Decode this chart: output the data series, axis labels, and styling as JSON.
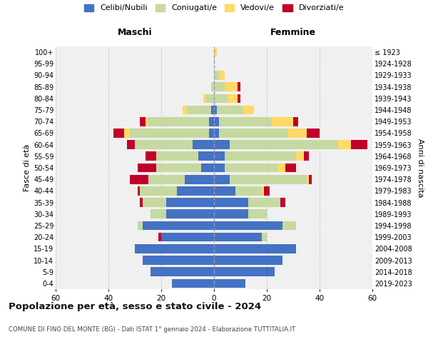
{
  "age_groups": [
    "0-4",
    "5-9",
    "10-14",
    "15-19",
    "20-24",
    "25-29",
    "30-34",
    "35-39",
    "40-44",
    "45-49",
    "50-54",
    "55-59",
    "60-64",
    "65-69",
    "70-74",
    "75-79",
    "80-84",
    "85-89",
    "90-94",
    "95-99",
    "100+"
  ],
  "birth_years": [
    "2019-2023",
    "2014-2018",
    "2009-2013",
    "2004-2008",
    "1999-2003",
    "1994-1998",
    "1989-1993",
    "1984-1988",
    "1979-1983",
    "1974-1978",
    "1969-1973",
    "1964-1968",
    "1959-1963",
    "1954-1958",
    "1949-1953",
    "1944-1948",
    "1939-1943",
    "1934-1938",
    "1929-1933",
    "1924-1928",
    "≤ 1923"
  ],
  "male": {
    "celibi": [
      16,
      24,
      27,
      30,
      20,
      27,
      18,
      18,
      14,
      11,
      5,
      6,
      8,
      2,
      2,
      1,
      0,
      0,
      0,
      0,
      0
    ],
    "coniugati": [
      0,
      0,
      0,
      0,
      0,
      2,
      6,
      9,
      14,
      14,
      17,
      16,
      22,
      30,
      23,
      9,
      3,
      1,
      0,
      0,
      0
    ],
    "vedovi": [
      0,
      0,
      0,
      0,
      0,
      0,
      0,
      0,
      0,
      0,
      0,
      0,
      0,
      2,
      1,
      2,
      1,
      0,
      0,
      0,
      0
    ],
    "divorziati": [
      0,
      0,
      0,
      0,
      1,
      0,
      0,
      1,
      1,
      7,
      7,
      4,
      3,
      4,
      2,
      0,
      0,
      0,
      0,
      0,
      0
    ]
  },
  "female": {
    "nubili": [
      12,
      23,
      26,
      31,
      18,
      26,
      13,
      13,
      8,
      6,
      4,
      4,
      6,
      2,
      2,
      1,
      0,
      0,
      0,
      0,
      0
    ],
    "coniugate": [
      0,
      0,
      0,
      0,
      2,
      5,
      7,
      12,
      10,
      29,
      20,
      27,
      41,
      26,
      20,
      10,
      5,
      4,
      2,
      0,
      0
    ],
    "vedove": [
      0,
      0,
      0,
      0,
      0,
      0,
      0,
      0,
      1,
      1,
      3,
      3,
      5,
      7,
      8,
      4,
      4,
      5,
      2,
      0,
      1
    ],
    "divorziate": [
      0,
      0,
      0,
      0,
      0,
      0,
      0,
      2,
      2,
      1,
      4,
      2,
      6,
      5,
      2,
      0,
      1,
      1,
      0,
      0,
      0
    ]
  },
  "colors": {
    "celibi": "#4472C4",
    "coniugati": "#C5D9A0",
    "vedovi": "#FFD966",
    "divorziati": "#C0002B"
  },
  "xlim": 60,
  "title": "Popolazione per età, sesso e stato civile - 2024",
  "subtitle": "COMUNE DI FINO DEL MONTE (BG) - Dati ISTAT 1° gennaio 2024 - Elaborazione TUTTITALIA.IT",
  "xlabel_left": "Maschi",
  "xlabel_right": "Femmine",
  "ylabel_left": "Fasce di età",
  "ylabel_right": "Anni di nascita",
  "legend_labels": [
    "Celibi/Nubili",
    "Coniugati/e",
    "Vedovi/e",
    "Divorziati/e"
  ],
  "bg_color": "#f0f0f0",
  "grid_color": "#cccccc"
}
